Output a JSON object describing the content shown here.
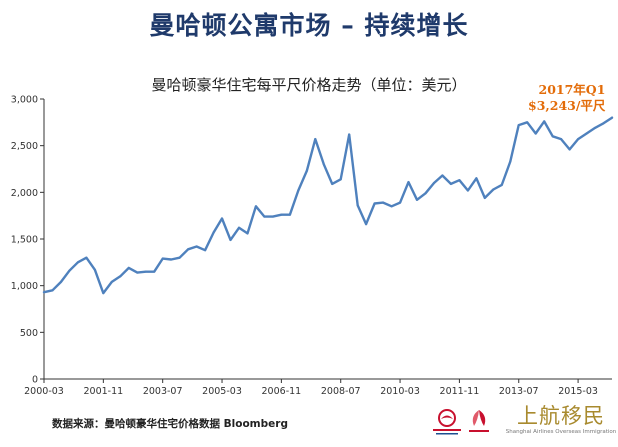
{
  "slide": {
    "title": "曼哈顿公寓市场 – 持续增长",
    "source": "数据来源：曼哈顿豪华住宅价格数据 Bloomberg"
  },
  "callout": {
    "line1": "2017年Q1",
    "line2": "$3,243/平尺",
    "color": "#e36c09"
  },
  "logos": {
    "brand_cn": "上航移民",
    "brand_en": "Shanghai Airlines Overseas Immigration",
    "china_eastern": "中国东方航空 CHINA EASTERN",
    "shanghai_airlines": "上海航空"
  },
  "chart_data": {
    "type": "line",
    "title": "曼哈顿豪华住宅每平尺价格走势（单位：美元）",
    "xlabel": "",
    "ylabel": "",
    "ylim": [
      0,
      3000
    ],
    "yticks": [
      0,
      500,
      1000,
      1500,
      2000,
      2500,
      3000
    ],
    "ytick_labels": [
      "0",
      "500",
      "1,000",
      "1,500",
      "2,000",
      "2,500",
      "3,000"
    ],
    "x_tick_labels": [
      "2000-03",
      "2001-11",
      "2003-07",
      "2005-03",
      "2006-11",
      "2008-07",
      "2010-03",
      "2011-11",
      "2013-07",
      "2015-03",
      "2016-11"
    ],
    "x_tick_every": 7,
    "grid": false,
    "line_color": "#4f81bd",
    "series": [
      {
        "values": [
          930,
          950,
          1040,
          1160,
          1250,
          1300,
          1170,
          920,
          1040,
          1100,
          1190,
          1140,
          1150,
          1150,
          1290,
          1280,
          1300,
          1390,
          1420,
          1380,
          1570,
          1720,
          1490,
          1620,
          1560,
          1850,
          1740,
          1740,
          1760,
          1760,
          2020,
          2230,
          2570,
          2300,
          2090,
          2140,
          2620,
          1860,
          1660,
          1880,
          1890,
          1850,
          1890,
          2110,
          1920,
          1990,
          2100,
          2180,
          2090,
          2130,
          2020,
          2150,
          1940,
          2030,
          2080,
          2330,
          2720,
          2750,
          2630,
          2760,
          2600,
          2570,
          2460,
          2570,
          2630,
          2690,
          2740,
          2800
        ]
      }
    ]
  }
}
